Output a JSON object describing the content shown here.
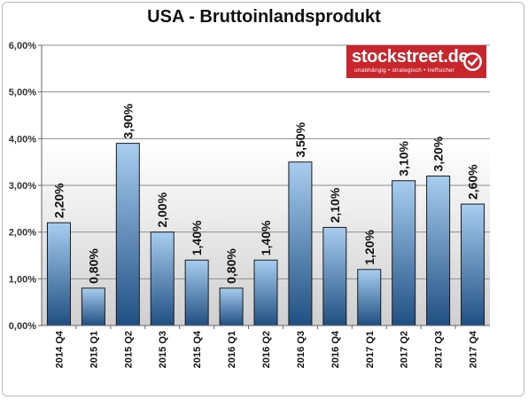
{
  "chart_data": {
    "type": "bar",
    "title": "USA - Bruttoinlandsprodukt",
    "xlabel": "",
    "ylabel": "",
    "categories": [
      "2014 Q4",
      "2015 Q1",
      "2015 Q2",
      "2015 Q3",
      "2015 Q4",
      "2016 Q1",
      "2016 Q2",
      "2016 Q3",
      "2016 Q4",
      "2017 Q1",
      "2017 Q2",
      "2017 Q3",
      "2017 Q4"
    ],
    "values": [
      2.2,
      0.8,
      3.9,
      2.0,
      1.4,
      0.8,
      1.4,
      3.5,
      2.1,
      1.2,
      3.1,
      3.2,
      2.6
    ],
    "data_labels": [
      "2,20%",
      "0,80%",
      "3,90%",
      "2,00%",
      "1,40%",
      "0,80%",
      "1,40%",
      "3,50%",
      "2,10%",
      "1,20%",
      "3,10%",
      "3,20%",
      "2,60%"
    ],
    "ylim": [
      0,
      6
    ],
    "yticks": [
      0,
      1,
      2,
      3,
      4,
      5,
      6
    ],
    "ytick_labels": [
      "0,00%",
      "1,00%",
      "2,00%",
      "3,00%",
      "4,00%",
      "5,00%",
      "6,00%"
    ],
    "grid": true,
    "legend": "none",
    "colors": {
      "bar_top": "#a8cdf0",
      "bar_bottom": "#1f4f82",
      "bar_edge": "#1a1a1a",
      "grid": "#8c8c8c"
    }
  },
  "brand": {
    "name": "stockstreet.de",
    "tagline": "unabhängig • strategisch • treffsicher",
    "icon": "checkmark-icon",
    "color": "#c9252c"
  }
}
